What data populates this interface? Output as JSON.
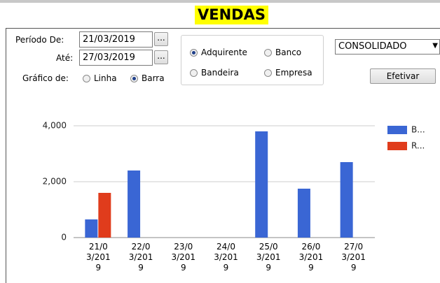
{
  "header": {
    "title": "VENDAS"
  },
  "form": {
    "period_from_label": "Período De:",
    "period_from": "21/03/2019",
    "until_label": "Até:",
    "until": "27/03/2019",
    "browse": "...",
    "chart_of_label": "Gráfico de:",
    "chart_options": [
      {
        "label": "Linha",
        "checked": false
      },
      {
        "label": "Barra",
        "checked": true
      }
    ],
    "group_options": [
      {
        "label": "Adquirente",
        "checked": true
      },
      {
        "label": "Banco",
        "checked": false
      },
      {
        "label": "Bandeira",
        "checked": false
      },
      {
        "label": "Empresa",
        "checked": false
      }
    ],
    "dropdown": "CONSOLIDADO",
    "submit": "Efetivar"
  },
  "chart_data": {
    "type": "bar",
    "categories": [
      "21/03/2019",
      "22/03/2019",
      "23/03/2019",
      "24/03/2019",
      "25/03/2019",
      "26/03/2019",
      "27/03/2019"
    ],
    "series": [
      {
        "name": "B...",
        "color": "#3a66d4",
        "values": [
          650,
          2400,
          0,
          0,
          3800,
          1750,
          2700
        ]
      },
      {
        "name": "R...",
        "color": "#e03c1c",
        "values": [
          1600,
          0,
          0,
          0,
          0,
          0,
          0
        ]
      }
    ],
    "ylim": [
      0,
      4000
    ],
    "yticks": [
      0,
      {
        "value": 2000,
        "label": "2,000"
      },
      {
        "value": 4000,
        "label": "4,000"
      }
    ],
    "grid": true,
    "legend": "right"
  }
}
